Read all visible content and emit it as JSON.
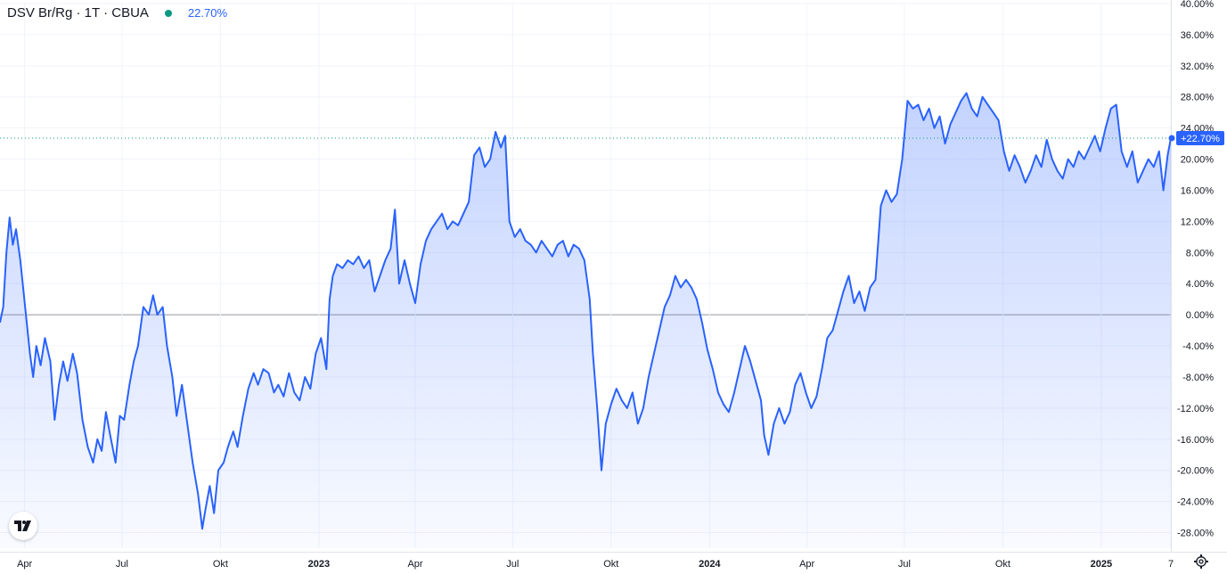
{
  "header": {
    "symbol": "DSV Br/Rg · 1T · CBUA",
    "change": "22.70%",
    "status_color": "#089981"
  },
  "colors": {
    "line": "#2962ff",
    "label_bg": "#2962ff",
    "axis_text": "#131722"
  },
  "icons": {
    "logo": "tradingview-logo-icon",
    "settings": "gear-icon"
  },
  "chart_data": {
    "type": "area",
    "title": "",
    "xlabel": "",
    "ylabel": "",
    "ylim": [
      -30,
      40
    ],
    "y_ticks": [
      "40.00%",
      "36.00%",
      "32.00%",
      "28.00%",
      "24.00%",
      "20.00%",
      "16.00%",
      "12.00%",
      "8.00%",
      "4.00%",
      "0.00%",
      "-4.00%",
      "-8.00%",
      "-12.00%",
      "-16.00%",
      "-20.00%",
      "-24.00%",
      "-28.00%"
    ],
    "y_tick_values": [
      40,
      36,
      32,
      28,
      24,
      20,
      16,
      12,
      8,
      4,
      0,
      -4,
      -8,
      -12,
      -16,
      -20,
      -24,
      -28
    ],
    "x_ticks": [
      {
        "label": "Apr",
        "x": "2022-04-01"
      },
      {
        "label": "Jul",
        "x": "2022-07-01"
      },
      {
        "label": "Okt",
        "x": "2022-10-01"
      },
      {
        "label": "2023",
        "x": "2023-01-01"
      },
      {
        "label": "Apr",
        "x": "2023-04-01"
      },
      {
        "label": "Jul",
        "x": "2023-07-01"
      },
      {
        "label": "Okt",
        "x": "2023-10-01"
      },
      {
        "label": "2024",
        "x": "2024-01-01"
      },
      {
        "label": "Apr",
        "x": "2024-04-01"
      },
      {
        "label": "Jul",
        "x": "2024-07-01"
      },
      {
        "label": "Okt",
        "x": "2024-10-01"
      },
      {
        "label": "2025",
        "x": "2025-01-01"
      },
      {
        "label": "7",
        "x": "2025-03-07"
      }
    ],
    "x_range": [
      "2022-03-09",
      "2025-03-07"
    ],
    "baseline": 0,
    "last_value_label": "+22.70%",
    "last_value": 22.7,
    "series": [
      {
        "values": [
          [
            "2022-03-09",
            -1.0
          ],
          [
            "2022-03-12",
            1.0
          ],
          [
            "2022-03-15",
            8.0
          ],
          [
            "2022-03-18",
            12.5
          ],
          [
            "2022-03-21",
            9.0
          ],
          [
            "2022-03-24",
            11.0
          ],
          [
            "2022-03-28",
            7.0
          ],
          [
            "2022-03-31",
            3.0
          ],
          [
            "2022-04-03",
            -1.0
          ],
          [
            "2022-04-06",
            -5.0
          ],
          [
            "2022-04-09",
            -8.0
          ],
          [
            "2022-04-12",
            -4.0
          ],
          [
            "2022-04-16",
            -6.5
          ],
          [
            "2022-04-20",
            -3.0
          ],
          [
            "2022-04-25",
            -6.0
          ],
          [
            "2022-04-29",
            -13.5
          ],
          [
            "2022-05-03",
            -9.0
          ],
          [
            "2022-05-07",
            -6.0
          ],
          [
            "2022-05-11",
            -8.5
          ],
          [
            "2022-05-16",
            -5.0
          ],
          [
            "2022-05-20",
            -7.5
          ],
          [
            "2022-05-25",
            -13.5
          ],
          [
            "2022-05-30",
            -17.0
          ],
          [
            "2022-06-04",
            -19.0
          ],
          [
            "2022-06-08",
            -16.0
          ],
          [
            "2022-06-12",
            -17.5
          ],
          [
            "2022-06-16",
            -12.5
          ],
          [
            "2022-06-20",
            -15.5
          ],
          [
            "2022-06-25",
            -19.0
          ],
          [
            "2022-06-29",
            -13.0
          ],
          [
            "2022-07-03",
            -13.5
          ],
          [
            "2022-07-08",
            -9.0
          ],
          [
            "2022-07-12",
            -6.0
          ],
          [
            "2022-07-16",
            -4.0
          ],
          [
            "2022-07-21",
            1.0
          ],
          [
            "2022-07-26",
            0.0
          ],
          [
            "2022-07-30",
            2.5
          ],
          [
            "2022-08-03",
            0.0
          ],
          [
            "2022-08-08",
            1.0
          ],
          [
            "2022-08-12",
            -4.0
          ],
          [
            "2022-08-17",
            -8.0
          ],
          [
            "2022-08-21",
            -13.0
          ],
          [
            "2022-08-26",
            -9.0
          ],
          [
            "2022-08-31",
            -14.0
          ],
          [
            "2022-09-05",
            -19.0
          ],
          [
            "2022-09-10",
            -23.0
          ],
          [
            "2022-09-14",
            -27.5
          ],
          [
            "2022-09-17",
            -25.0
          ],
          [
            "2022-09-21",
            -22.0
          ],
          [
            "2022-09-25",
            -25.5
          ],
          [
            "2022-09-29",
            -20.0
          ],
          [
            "2022-10-04",
            -19.0
          ],
          [
            "2022-10-08",
            -17.0
          ],
          [
            "2022-10-13",
            -15.0
          ],
          [
            "2022-10-17",
            -17.0
          ],
          [
            "2022-10-22",
            -13.0
          ],
          [
            "2022-10-27",
            -9.5
          ],
          [
            "2022-11-01",
            -7.5
          ],
          [
            "2022-11-05",
            -9.0
          ],
          [
            "2022-11-10",
            -7.0
          ],
          [
            "2022-11-15",
            -7.5
          ],
          [
            "2022-11-20",
            -10.0
          ],
          [
            "2022-11-24",
            -9.0
          ],
          [
            "2022-11-29",
            -10.5
          ],
          [
            "2022-12-04",
            -7.5
          ],
          [
            "2022-12-09",
            -10.0
          ],
          [
            "2022-12-14",
            -11.0
          ],
          [
            "2022-12-19",
            -8.0
          ],
          [
            "2022-12-24",
            -9.5
          ],
          [
            "2022-12-29",
            -5.0
          ],
          [
            "2023-01-03",
            -3.0
          ],
          [
            "2023-01-08",
            -7.0
          ],
          [
            "2023-01-11",
            2.0
          ],
          [
            "2023-01-14",
            5.0
          ],
          [
            "2023-01-18",
            6.5
          ],
          [
            "2023-01-23",
            6.0
          ],
          [
            "2023-01-28",
            7.0
          ],
          [
            "2023-02-02",
            6.5
          ],
          [
            "2023-02-07",
            7.5
          ],
          [
            "2023-02-12",
            6.0
          ],
          [
            "2023-02-17",
            7.0
          ],
          [
            "2023-02-22",
            3.0
          ],
          [
            "2023-02-27",
            5.0
          ],
          [
            "2023-03-04",
            7.0
          ],
          [
            "2023-03-09",
            8.5
          ],
          [
            "2023-03-13",
            13.5
          ],
          [
            "2023-03-17",
            4.0
          ],
          [
            "2023-03-22",
            7.0
          ],
          [
            "2023-03-27",
            4.0
          ],
          [
            "2023-04-01",
            1.5
          ],
          [
            "2023-04-06",
            6.5
          ],
          [
            "2023-04-11",
            9.5
          ],
          [
            "2023-04-16",
            11.0
          ],
          [
            "2023-04-21",
            12.0
          ],
          [
            "2023-04-26",
            13.0
          ],
          [
            "2023-05-01",
            11.0
          ],
          [
            "2023-05-06",
            12.0
          ],
          [
            "2023-05-11",
            11.5
          ],
          [
            "2023-05-16",
            13.0
          ],
          [
            "2023-05-21",
            14.5
          ],
          [
            "2023-05-26",
            20.5
          ],
          [
            "2023-05-31",
            21.5
          ],
          [
            "2023-06-05",
            19.0
          ],
          [
            "2023-06-10",
            20.0
          ],
          [
            "2023-06-15",
            23.5
          ],
          [
            "2023-06-20",
            21.5
          ],
          [
            "2023-06-24",
            23.0
          ],
          [
            "2023-06-28",
            12.0
          ],
          [
            "2023-07-03",
            10.0
          ],
          [
            "2023-07-08",
            11.0
          ],
          [
            "2023-07-13",
            9.5
          ],
          [
            "2023-07-18",
            9.0
          ],
          [
            "2023-07-23",
            8.0
          ],
          [
            "2023-07-28",
            9.5
          ],
          [
            "2023-08-02",
            8.5
          ],
          [
            "2023-08-07",
            7.5
          ],
          [
            "2023-08-12",
            9.0
          ],
          [
            "2023-08-17",
            9.5
          ],
          [
            "2023-08-22",
            7.5
          ],
          [
            "2023-08-27",
            9.0
          ],
          [
            "2023-09-01",
            8.5
          ],
          [
            "2023-09-06",
            7.0
          ],
          [
            "2023-09-11",
            2.0
          ],
          [
            "2023-09-14",
            -5.0
          ],
          [
            "2023-09-18",
            -12.0
          ],
          [
            "2023-09-22",
            -20.0
          ],
          [
            "2023-09-26",
            -14.0
          ],
          [
            "2023-10-01",
            -11.5
          ],
          [
            "2023-10-06",
            -9.5
          ],
          [
            "2023-10-11",
            -11.0
          ],
          [
            "2023-10-16",
            -12.0
          ],
          [
            "2023-10-21",
            -10.0
          ],
          [
            "2023-10-26",
            -14.0
          ],
          [
            "2023-10-31",
            -12.0
          ],
          [
            "2023-11-05",
            -8.0
          ],
          [
            "2023-11-10",
            -5.0
          ],
          [
            "2023-11-15",
            -2.0
          ],
          [
            "2023-11-20",
            1.0
          ],
          [
            "2023-11-25",
            2.5
          ],
          [
            "2023-11-30",
            5.0
          ],
          [
            "2023-12-05",
            3.5
          ],
          [
            "2023-12-10",
            4.5
          ],
          [
            "2023-12-15",
            3.5
          ],
          [
            "2023-12-20",
            2.0
          ],
          [
            "2023-12-25",
            -1.0
          ],
          [
            "2023-12-30",
            -4.5
          ],
          [
            "2024-01-04",
            -7.0
          ],
          [
            "2024-01-09",
            -10.0
          ],
          [
            "2024-01-14",
            -11.5
          ],
          [
            "2024-01-19",
            -12.5
          ],
          [
            "2024-01-24",
            -10.0
          ],
          [
            "2024-01-29",
            -7.0
          ],
          [
            "2024-02-03",
            -4.0
          ],
          [
            "2024-02-08",
            -6.0
          ],
          [
            "2024-02-13",
            -8.5
          ],
          [
            "2024-02-18",
            -11.0
          ],
          [
            "2024-02-21",
            -15.5
          ],
          [
            "2024-02-25",
            -18.0
          ],
          [
            "2024-03-01",
            -14.0
          ],
          [
            "2024-03-06",
            -12.0
          ],
          [
            "2024-03-11",
            -14.0
          ],
          [
            "2024-03-16",
            -12.5
          ],
          [
            "2024-03-21",
            -9.0
          ],
          [
            "2024-03-26",
            -7.5
          ],
          [
            "2024-03-31",
            -10.0
          ],
          [
            "2024-04-05",
            -12.0
          ],
          [
            "2024-04-10",
            -10.5
          ],
          [
            "2024-04-15",
            -7.0
          ],
          [
            "2024-04-20",
            -3.0
          ],
          [
            "2024-04-25",
            -2.0
          ],
          [
            "2024-04-30",
            0.5
          ],
          [
            "2024-05-05",
            3.0
          ],
          [
            "2024-05-10",
            5.0
          ],
          [
            "2024-05-15",
            1.5
          ],
          [
            "2024-05-20",
            3.0
          ],
          [
            "2024-05-25",
            0.5
          ],
          [
            "2024-05-30",
            3.5
          ],
          [
            "2024-06-04",
            4.5
          ],
          [
            "2024-06-09",
            14.0
          ],
          [
            "2024-06-14",
            16.0
          ],
          [
            "2024-06-19",
            14.5
          ],
          [
            "2024-06-24",
            15.5
          ],
          [
            "2024-06-29",
            20.0
          ],
          [
            "2024-07-04",
            27.5
          ],
          [
            "2024-07-09",
            26.5
          ],
          [
            "2024-07-14",
            27.0
          ],
          [
            "2024-07-19",
            25.0
          ],
          [
            "2024-07-24",
            26.5
          ],
          [
            "2024-07-29",
            24.0
          ],
          [
            "2024-08-03",
            25.5
          ],
          [
            "2024-08-08",
            22.0
          ],
          [
            "2024-08-13",
            24.5
          ],
          [
            "2024-08-18",
            26.0
          ],
          [
            "2024-08-23",
            27.5
          ],
          [
            "2024-08-28",
            28.5
          ],
          [
            "2024-09-02",
            26.5
          ],
          [
            "2024-09-07",
            25.5
          ],
          [
            "2024-09-12",
            28.0
          ],
          [
            "2024-09-17",
            27.0
          ],
          [
            "2024-09-22",
            26.0
          ],
          [
            "2024-09-27",
            25.0
          ],
          [
            "2024-10-02",
            21.0
          ],
          [
            "2024-10-07",
            18.5
          ],
          [
            "2024-10-12",
            20.5
          ],
          [
            "2024-10-17",
            19.0
          ],
          [
            "2024-10-22",
            17.0
          ],
          [
            "2024-10-27",
            18.5
          ],
          [
            "2024-11-01",
            20.5
          ],
          [
            "2024-11-06",
            19.0
          ],
          [
            "2024-11-11",
            22.5
          ],
          [
            "2024-11-16",
            20.0
          ],
          [
            "2024-11-21",
            18.5
          ],
          [
            "2024-11-26",
            17.5
          ],
          [
            "2024-12-01",
            20.0
          ],
          [
            "2024-12-06",
            19.0
          ],
          [
            "2024-12-11",
            21.0
          ],
          [
            "2024-12-16",
            20.0
          ],
          [
            "2024-12-21",
            21.5
          ],
          [
            "2024-12-26",
            23.0
          ],
          [
            "2024-12-31",
            21.0
          ],
          [
            "2025-01-05",
            24.0
          ],
          [
            "2025-01-10",
            26.5
          ],
          [
            "2025-01-15",
            27.0
          ],
          [
            "2025-01-20",
            21.0
          ],
          [
            "2025-01-25",
            19.0
          ],
          [
            "2025-01-30",
            21.0
          ],
          [
            "2025-02-04",
            17.0
          ],
          [
            "2025-02-09",
            18.5
          ],
          [
            "2025-02-14",
            20.0
          ],
          [
            "2025-02-19",
            19.0
          ],
          [
            "2025-02-24",
            21.0
          ],
          [
            "2025-02-28",
            16.0
          ],
          [
            "2025-03-04",
            20.5
          ],
          [
            "2025-03-07",
            22.7
          ]
        ]
      }
    ]
  }
}
